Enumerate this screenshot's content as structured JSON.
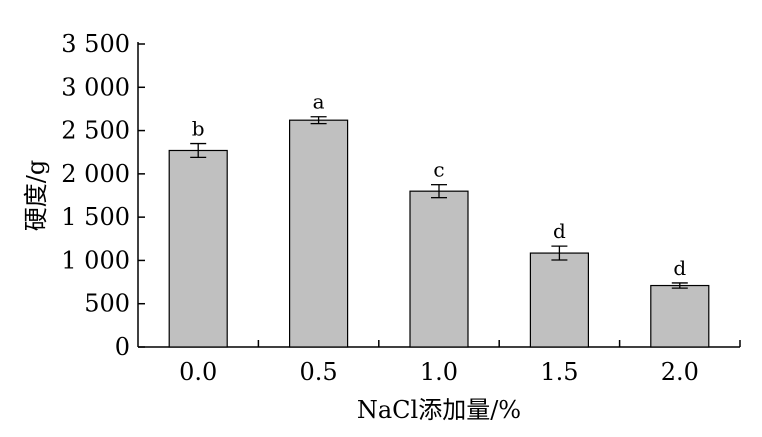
{
  "chart_data": {
    "type": "bar",
    "categories": [
      "0.0",
      "0.5",
      "1.0",
      "1.5",
      "2.0"
    ],
    "values": [
      2270,
      2620,
      1800,
      1085,
      710
    ],
    "errors": [
      80,
      40,
      75,
      80,
      30
    ],
    "significance": [
      "b",
      "a",
      "c",
      "d",
      "d"
    ],
    "xlabel": "NaCl添加量/%",
    "ylabel": "硬度/g",
    "ylim": [
      0,
      3500
    ],
    "yticks": [
      0,
      500,
      1000,
      1500,
      2000,
      2500,
      3000,
      3500
    ],
    "ytick_labels": [
      "0",
      "500",
      "1 000",
      "1 500",
      "2 000",
      "2 500",
      "3 000",
      "3 500"
    ],
    "grid": false,
    "bar_color": "#c0c0c0"
  }
}
